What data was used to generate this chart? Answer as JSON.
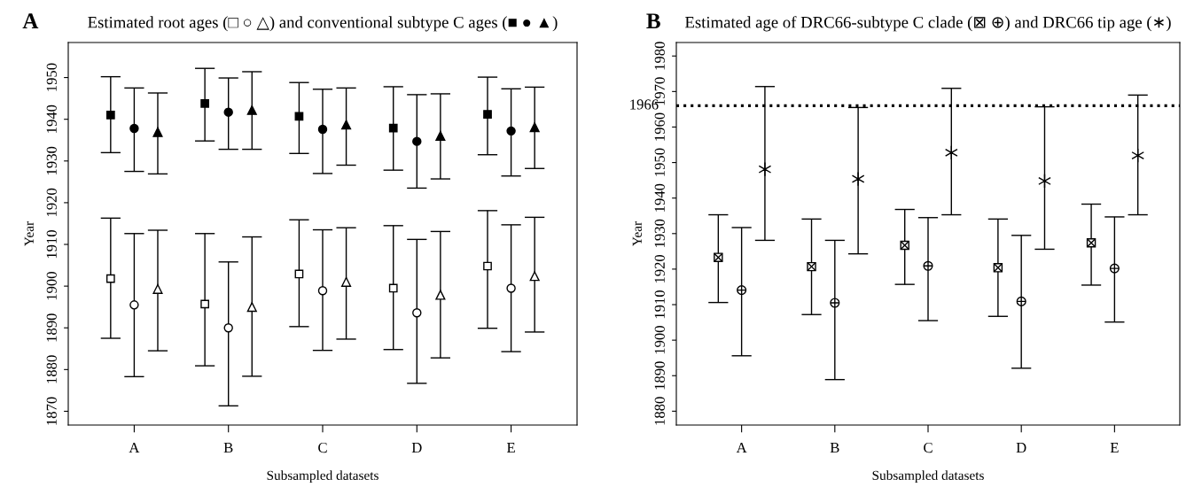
{
  "chart_data": [
    {
      "type": "scatter",
      "title": "Estimated root ages (□ ○ △) and conventional subtype C ages (■ ● ▲)",
      "xlabel": "Subsampled datasets",
      "ylabel": "Year",
      "annotations": [
        "A"
      ],
      "categories": [
        "A",
        "B",
        "C",
        "D",
        "E"
      ],
      "ylim": [
        1866.7,
        1958.4
      ],
      "yticks": [
        1870,
        1880,
        1890,
        1900,
        1910,
        1920,
        1930,
        1940,
        1950
      ],
      "grid": false,
      "legend": false,
      "series": [
        {
          "color": "#000000",
          "marker": "square",
          "values": [
            1941.0,
            1943.8,
            1940.7,
            1937.9,
            1941.2
          ],
          "errors": [
            [
              1932.0,
              1950.2
            ],
            [
              1934.8,
              1952.2
            ],
            [
              1931.8,
              1948.8
            ],
            [
              1927.8,
              1947.8
            ],
            [
              1931.5,
              1950.1
            ]
          ]
        },
        {
          "color": "#000000",
          "marker": "circle",
          "values": [
            1937.8,
            1941.7,
            1937.6,
            1934.7,
            1937.2
          ],
          "errors": [
            [
              1927.5,
              1947.5
            ],
            [
              1932.8,
              1949.9
            ],
            [
              1927.0,
              1947.2
            ],
            [
              1923.5,
              1945.9
            ],
            [
              1926.4,
              1947.3
            ]
          ]
        },
        {
          "color": "#000000",
          "marker": "triangle",
          "values": [
            1936.9,
            1942.2,
            1938.7,
            1936.0,
            1938.1
          ],
          "errors": [
            [
              1926.9,
              1946.3
            ],
            [
              1932.8,
              1951.4
            ],
            [
              1929.0,
              1947.5
            ],
            [
              1925.7,
              1946.1
            ],
            [
              1928.2,
              1947.7
            ]
          ]
        },
        {
          "color": "#000000",
          "marker": "square",
          "values": [
            1901.8,
            1895.7,
            1902.9,
            1899.5,
            1904.8
          ],
          "errors": [
            [
              1887.5,
              1916.3
            ],
            [
              1880.9,
              1912.6
            ],
            [
              1890.3,
              1915.9
            ],
            [
              1884.8,
              1914.5
            ],
            [
              1889.9,
              1918.1
            ]
          ]
        },
        {
          "color": "#000000",
          "marker": "circle",
          "values": [
            1895.5,
            1890.0,
            1898.9,
            1893.6,
            1899.5
          ],
          "errors": [
            [
              1878.3,
              1912.6
            ],
            [
              1871.3,
              1905.8
            ],
            [
              1884.6,
              1913.5
            ],
            [
              1876.7,
              1911.2
            ],
            [
              1884.3,
              1914.7
            ]
          ]
        },
        {
          "color": "#000000",
          "marker": "triangle",
          "values": [
            1899.3,
            1895.0,
            1901.0,
            1897.9,
            1902.4
          ],
          "errors": [
            [
              1884.5,
              1913.4
            ],
            [
              1878.4,
              1911.8
            ],
            [
              1887.3,
              1914.0
            ],
            [
              1882.8,
              1913.1
            ],
            [
              1889.0,
              1916.5
            ]
          ]
        }
      ]
    },
    {
      "type": "scatter",
      "title": "Estimated age of DRC66-subtype C clade (⊠ ⊕) and DRC66 tip age (∗)",
      "xlabel": "Subsampled datasets",
      "ylabel": "Year",
      "annotations": [
        "B"
      ],
      "categories": [
        "A",
        "B",
        "C",
        "D",
        "E"
      ],
      "ylim": [
        1876.1,
        1983.8
      ],
      "yticks": [
        1880,
        1890,
        1900,
        1910,
        1920,
        1930,
        1940,
        1950,
        1960,
        1970,
        1980
      ],
      "grid": false,
      "legend": false,
      "ref_lines": [
        {
          "axis": "y",
          "value": 1966,
          "label": "1966",
          "color": "#000000",
          "line_style": "dotted"
        }
      ],
      "series": [
        {
          "color": "#000000",
          "marker": "square-x",
          "values": [
            1923.3,
            1920.7,
            1926.7,
            1920.4,
            1927.4
          ],
          "errors": [
            [
              1910.6,
              1935.3
            ],
            [
              1907.2,
              1934.1
            ],
            [
              1915.7,
              1936.8
            ],
            [
              1906.7,
              1934.1
            ],
            [
              1915.5,
              1938.3
            ]
          ]
        },
        {
          "color": "#000000",
          "marker": "circle-plus",
          "values": [
            1914.1,
            1910.5,
            1920.9,
            1910.9,
            1920.2
          ],
          "errors": [
            [
              1895.6,
              1931.7
            ],
            [
              1888.9,
              1928.1
            ],
            [
              1905.5,
              1934.5
            ],
            [
              1892.1,
              1929.5
            ],
            [
              1905.1,
              1934.7
            ]
          ]
        },
        {
          "color": "#000000",
          "marker": "cross",
          "values": [
            1948.1,
            1945.4,
            1952.8,
            1944.8,
            1952.0
          ],
          "errors": [
            [
              1928.1,
              1971.4
            ],
            [
              1924.3,
              1965.5
            ],
            [
              1935.3,
              1970.9
            ],
            [
              1925.6,
              1965.7
            ],
            [
              1935.3,
              1969.0
            ]
          ]
        }
      ]
    }
  ]
}
